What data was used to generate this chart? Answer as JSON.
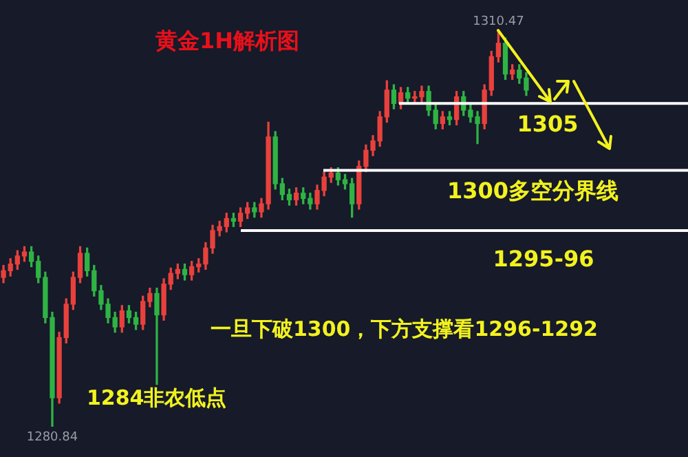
{
  "chart_data": {
    "type": "candlestick",
    "title": "黄金1H解析图",
    "categories": [
      null,
      null,
      null,
      null,
      null,
      null,
      null,
      null,
      null,
      null,
      null,
      null,
      null,
      null,
      null,
      null,
      null,
      null,
      null,
      null,
      null,
      null,
      null,
      null,
      null,
      null,
      null,
      null,
      null,
      null,
      null,
      null,
      null,
      null,
      null,
      null,
      null,
      null,
      null,
      null,
      null,
      null,
      null,
      null,
      null,
      null,
      null,
      null,
      null,
      null,
      null,
      null,
      null,
      null,
      null,
      null,
      null,
      null,
      null,
      null,
      null,
      null,
      null,
      null,
      null,
      null,
      null,
      null,
      null,
      null,
      null,
      null,
      null,
      null,
      null,
      null
    ],
    "ohlc": [
      [
        1292.0,
        1292.9,
        1291.6,
        1292.5
      ],
      [
        1292.5,
        1293.4,
        1292.1,
        1293.0
      ],
      [
        1293.0,
        1294.0,
        1292.6,
        1293.6
      ],
      [
        1293.6,
        1294.3,
        1293.2,
        1293.9
      ],
      [
        1293.9,
        1294.3,
        1292.8,
        1293.2
      ],
      [
        1293.2,
        1293.6,
        1291.6,
        1292.0
      ],
      [
        1292.0,
        1292.4,
        1288.6,
        1289.0
      ],
      [
        1289.0,
        1289.4,
        1280.84,
        1283.0
      ],
      [
        1283.0,
        1287.9,
        1282.6,
        1287.5
      ],
      [
        1287.5,
        1290.4,
        1287.1,
        1290.0
      ],
      [
        1290.0,
        1292.4,
        1289.6,
        1292.0
      ],
      [
        1292.0,
        1294.3,
        1291.6,
        1293.8
      ],
      [
        1293.8,
        1294.2,
        1292.1,
        1292.5
      ],
      [
        1292.5,
        1292.9,
        1290.6,
        1291.0
      ],
      [
        1291.0,
        1291.4,
        1289.6,
        1290.0
      ],
      [
        1290.0,
        1290.4,
        1288.6,
        1289.0
      ],
      [
        1289.0,
        1289.4,
        1287.9,
        1288.3
      ],
      [
        1288.3,
        1289.9,
        1287.9,
        1289.5
      ],
      [
        1289.5,
        1289.9,
        1288.6,
        1289.0
      ],
      [
        1289.0,
        1289.4,
        1288.1,
        1288.5
      ],
      [
        1288.5,
        1290.6,
        1288.1,
        1290.2
      ],
      [
        1290.2,
        1291.2,
        1289.8,
        1290.8
      ],
      [
        1290.8,
        1291.2,
        1284.0,
        1289.2
      ],
      [
        1289.2,
        1291.9,
        1288.8,
        1291.5
      ],
      [
        1291.5,
        1292.7,
        1291.1,
        1292.3
      ],
      [
        1292.3,
        1293.0,
        1291.9,
        1292.6
      ],
      [
        1292.6,
        1293.0,
        1291.8,
        1292.2
      ],
      [
        1292.2,
        1293.2,
        1291.8,
        1292.8
      ],
      [
        1292.8,
        1293.4,
        1292.4,
        1293.0
      ],
      [
        1293.0,
        1294.6,
        1292.6,
        1294.2
      ],
      [
        1294.2,
        1295.9,
        1293.8,
        1295.5
      ],
      [
        1295.5,
        1296.2,
        1295.1,
        1295.8
      ],
      [
        1295.8,
        1296.8,
        1295.4,
        1296.4
      ],
      [
        1296.4,
        1296.8,
        1295.8,
        1296.2
      ],
      [
        1296.2,
        1297.2,
        1295.8,
        1296.8
      ],
      [
        1296.8,
        1297.6,
        1296.4,
        1297.2
      ],
      [
        1297.2,
        1297.6,
        1296.5,
        1296.9
      ],
      [
        1296.9,
        1297.9,
        1296.5,
        1297.5
      ],
      [
        1297.5,
        1303.6,
        1297.1,
        1302.5
      ],
      [
        1302.5,
        1302.9,
        1298.6,
        1299.0
      ],
      [
        1299.0,
        1299.4,
        1297.8,
        1298.2
      ],
      [
        1298.2,
        1298.6,
        1297.4,
        1297.8
      ],
      [
        1297.8,
        1298.7,
        1297.4,
        1298.3
      ],
      [
        1298.3,
        1298.7,
        1297.5,
        1297.9
      ],
      [
        1297.9,
        1298.3,
        1297.1,
        1297.5
      ],
      [
        1297.5,
        1298.9,
        1297.1,
        1298.5
      ],
      [
        1298.5,
        1299.9,
        1298.1,
        1299.5
      ],
      [
        1299.5,
        1300.2,
        1299.1,
        1299.8
      ],
      [
        1299.8,
        1300.2,
        1298.9,
        1299.3
      ],
      [
        1299.3,
        1299.7,
        1298.6,
        1299.0
      ],
      [
        1299.0,
        1299.4,
        1296.5,
        1297.5
      ],
      [
        1297.5,
        1300.7,
        1297.1,
        1300.3
      ],
      [
        1300.3,
        1301.9,
        1299.9,
        1301.5
      ],
      [
        1301.5,
        1302.6,
        1301.1,
        1302.2
      ],
      [
        1302.2,
        1304.4,
        1301.8,
        1304.0
      ],
      [
        1304.0,
        1306.7,
        1303.6,
        1306.0
      ],
      [
        1306.0,
        1306.4,
        1304.6,
        1305.0
      ],
      [
        1305.0,
        1306.2,
        1304.6,
        1305.8
      ],
      [
        1305.8,
        1306.2,
        1305.0,
        1305.4
      ],
      [
        1305.4,
        1305.9,
        1305.0,
        1305.5
      ],
      [
        1305.5,
        1306.3,
        1305.1,
        1305.9
      ],
      [
        1305.9,
        1306.3,
        1304.1,
        1304.5
      ],
      [
        1304.5,
        1304.9,
        1303.1,
        1303.5
      ],
      [
        1303.5,
        1304.4,
        1303.1,
        1304.0
      ],
      [
        1304.0,
        1304.4,
        1303.4,
        1303.8
      ],
      [
        1303.8,
        1305.9,
        1303.4,
        1305.5
      ],
      [
        1305.5,
        1305.9,
        1304.1,
        1304.5
      ],
      [
        1304.5,
        1304.9,
        1303.6,
        1304.0
      ],
      [
        1304.0,
        1304.4,
        1302.0,
        1303.5
      ],
      [
        1303.5,
        1306.4,
        1303.1,
        1306.0
      ],
      [
        1306.0,
        1308.9,
        1305.6,
        1308.5
      ],
      [
        1308.5,
        1310.47,
        1308.1,
        1309.5
      ],
      [
        1309.5,
        1309.9,
        1306.8,
        1307.2
      ],
      [
        1307.2,
        1307.9,
        1306.8,
        1307.5
      ],
      [
        1307.5,
        1307.9,
        1306.5,
        1306.9
      ],
      [
        1306.9,
        1307.3,
        1305.6,
        1306.0
      ]
    ],
    "ref_lines": [
      {
        "axis": "y",
        "value": 1305,
        "label": "1305",
        "color": "#ffffff"
      },
      {
        "axis": "y",
        "value": 1300,
        "label": "1300多空分界线",
        "color": "#ffffff"
      },
      {
        "axis": "y",
        "value": 1295.5,
        "label": "1295-96",
        "color": "#ffffff"
      }
    ],
    "annotations": [
      {
        "text": "1310.47",
        "y": 1310.47
      },
      {
        "text": "1280.84",
        "y": 1280.84
      },
      "1284非农低点",
      "一旦下破1300，下方支撑看1296-1292"
    ],
    "legend": false
  }
}
